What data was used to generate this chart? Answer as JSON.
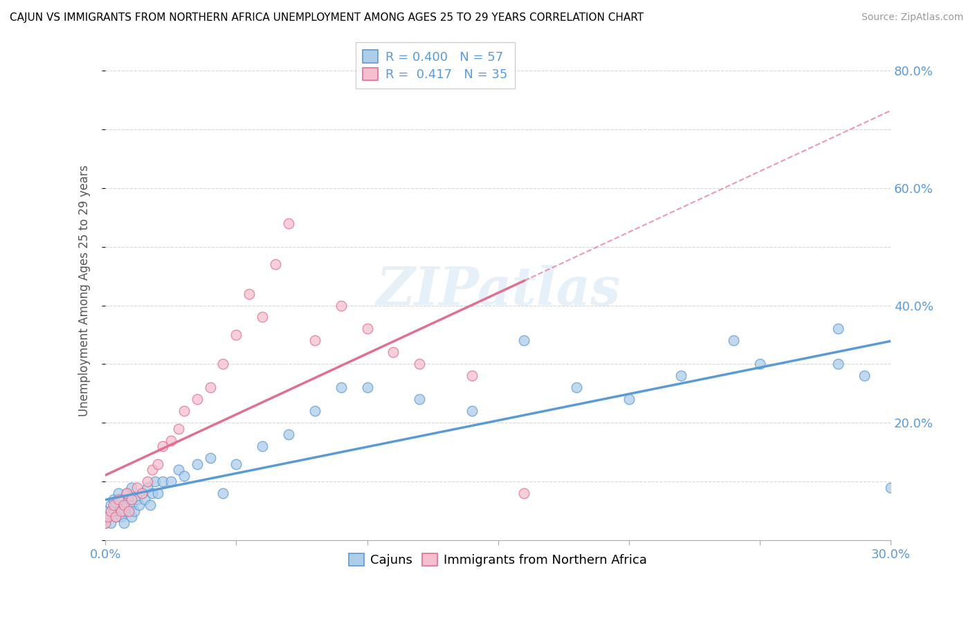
{
  "title": "CAJUN VS IMMIGRANTS FROM NORTHERN AFRICA UNEMPLOYMENT AMONG AGES 25 TO 29 YEARS CORRELATION CHART",
  "source": "Source: ZipAtlas.com",
  "ylabel": "Unemployment Among Ages 25 to 29 years",
  "xmin": 0.0,
  "xmax": 0.3,
  "ymin": 0.0,
  "ymax": 0.85,
  "cajun_color": "#aecde8",
  "cajun_edge_color": "#5b9bd5",
  "immigrants_color": "#f4bfce",
  "immigrants_edge_color": "#e07090",
  "cajun_R": 0.4,
  "cajun_N": 57,
  "immigrants_R": 0.417,
  "immigrants_N": 35,
  "legend_label_cajun": "Cajuns",
  "legend_label_immigrants": "Immigrants from Northern Africa",
  "watermark": "ZIPatlas",
  "cajun_scatter_x": [
    0.0,
    0.0,
    0.001,
    0.002,
    0.002,
    0.003,
    0.003,
    0.004,
    0.004,
    0.005,
    0.005,
    0.006,
    0.006,
    0.007,
    0.007,
    0.008,
    0.008,
    0.009,
    0.009,
    0.01,
    0.01,
    0.01,
    0.011,
    0.012,
    0.013,
    0.014,
    0.015,
    0.016,
    0.017,
    0.018,
    0.019,
    0.02,
    0.022,
    0.025,
    0.028,
    0.03,
    0.035,
    0.04,
    0.045,
    0.05,
    0.06,
    0.07,
    0.08,
    0.09,
    0.1,
    0.12,
    0.14,
    0.16,
    0.18,
    0.2,
    0.22,
    0.24,
    0.25,
    0.28,
    0.28,
    0.29,
    0.3
  ],
  "cajun_scatter_y": [
    0.03,
    0.05,
    0.04,
    0.06,
    0.03,
    0.05,
    0.07,
    0.04,
    0.06,
    0.05,
    0.08,
    0.04,
    0.07,
    0.05,
    0.03,
    0.06,
    0.08,
    0.05,
    0.07,
    0.04,
    0.06,
    0.09,
    0.05,
    0.07,
    0.06,
    0.08,
    0.07,
    0.09,
    0.06,
    0.08,
    0.1,
    0.08,
    0.1,
    0.1,
    0.12,
    0.11,
    0.13,
    0.14,
    0.08,
    0.13,
    0.16,
    0.18,
    0.22,
    0.26,
    0.26,
    0.24,
    0.22,
    0.34,
    0.26,
    0.24,
    0.28,
    0.34,
    0.3,
    0.3,
    0.36,
    0.28,
    0.09
  ],
  "immigrants_scatter_x": [
    0.0,
    0.001,
    0.002,
    0.003,
    0.004,
    0.005,
    0.006,
    0.007,
    0.008,
    0.009,
    0.01,
    0.012,
    0.014,
    0.016,
    0.018,
    0.02,
    0.022,
    0.025,
    0.028,
    0.03,
    0.035,
    0.04,
    0.045,
    0.05,
    0.055,
    0.06,
    0.065,
    0.07,
    0.08,
    0.09,
    0.1,
    0.11,
    0.12,
    0.14,
    0.16
  ],
  "immigrants_scatter_y": [
    0.03,
    0.04,
    0.05,
    0.06,
    0.04,
    0.07,
    0.05,
    0.06,
    0.08,
    0.05,
    0.07,
    0.09,
    0.08,
    0.1,
    0.12,
    0.13,
    0.16,
    0.17,
    0.19,
    0.22,
    0.24,
    0.26,
    0.3,
    0.35,
    0.42,
    0.38,
    0.47,
    0.54,
    0.34,
    0.4,
    0.36,
    0.32,
    0.3,
    0.28,
    0.08
  ]
}
